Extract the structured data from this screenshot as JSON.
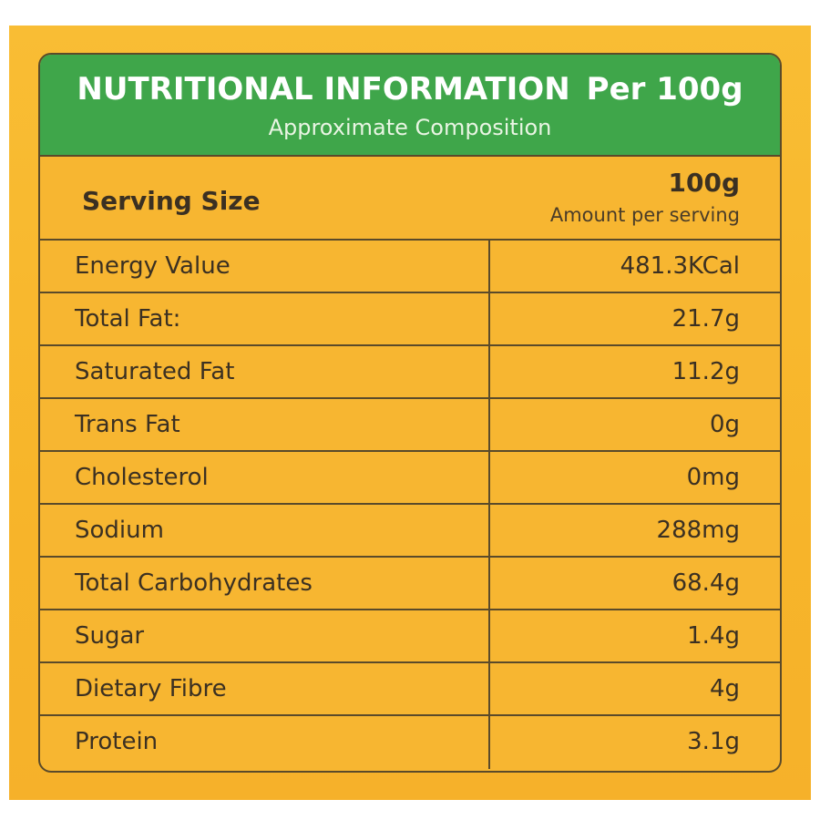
{
  "header": {
    "title": "NUTRITIONAL INFORMATION",
    "per": "Per 100g",
    "subtitle": "Approximate Composition"
  },
  "serving": {
    "label": "Serving Size",
    "value": "100g",
    "sublabel": "Amount per serving"
  },
  "rows": [
    {
      "name": "Energy Value",
      "value": "481.3KCal"
    },
    {
      "name": "Total Fat:",
      "value": "21.7g"
    },
    {
      "name": "Saturated Fat",
      "value": "11.2g"
    },
    {
      "name": "Trans Fat",
      "value": "0g"
    },
    {
      "name": "Cholesterol",
      "value": "0mg"
    },
    {
      "name": "Sodium",
      "value": "288mg"
    },
    {
      "name": "Total Carbohydrates",
      "value": "68.4g"
    },
    {
      "name": "Sugar",
      "value": "1.4g"
    },
    {
      "name": "Dietary Fibre",
      "value": "4g"
    },
    {
      "name": "Protein",
      "value": "3.1g"
    }
  ],
  "colors": {
    "background": "#f7b631",
    "header_green": "#3fa64a",
    "border": "#5a4a2a",
    "text": "#3b3022"
  }
}
